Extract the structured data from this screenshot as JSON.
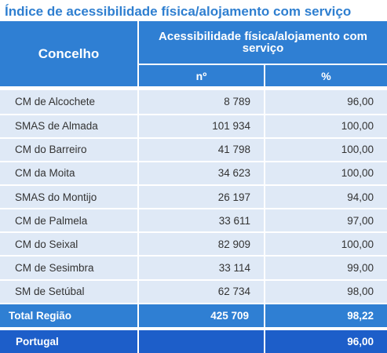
{
  "title": "Índice de acessibilidade física/alojamento com serviço",
  "header": {
    "concelho": "Concelho",
    "group": "Acessibilidade física/alojamento com serviço",
    "col_n": "nº",
    "col_pct": "%"
  },
  "rows": [
    {
      "concelho": "CM de Alcochete",
      "n": "8 789",
      "pct": "96,00"
    },
    {
      "concelho": "SMAS de Almada",
      "n": "101 934",
      "pct": "100,00"
    },
    {
      "concelho": "CM do Barreiro",
      "n": "41 798",
      "pct": "100,00"
    },
    {
      "concelho": "CM da Moita",
      "n": "34 623",
      "pct": "100,00"
    },
    {
      "concelho": "SMAS do Montijo",
      "n": "26 197",
      "pct": "94,00"
    },
    {
      "concelho": "CM de Palmela",
      "n": "33 611",
      "pct": "97,00"
    },
    {
      "concelho": "CM do Seixal",
      "n": "82 909",
      "pct": "100,00"
    },
    {
      "concelho": "CM de Sesimbra",
      "n": "33 114",
      "pct": "99,00"
    },
    {
      "concelho": "SM de Setúbal",
      "n": "62 734",
      "pct": "98,00"
    }
  ],
  "total": {
    "label": "Total Região",
    "n": "425 709",
    "pct": "98,22"
  },
  "portugal": {
    "label": "Portugal",
    "n": "",
    "pct": "96,00"
  },
  "colors": {
    "header_blue": "#2f7fd3",
    "row_bg": "#dfe9f6",
    "portugal_blue": "#1d5ec9",
    "title_blue": "#2f7fd0"
  }
}
